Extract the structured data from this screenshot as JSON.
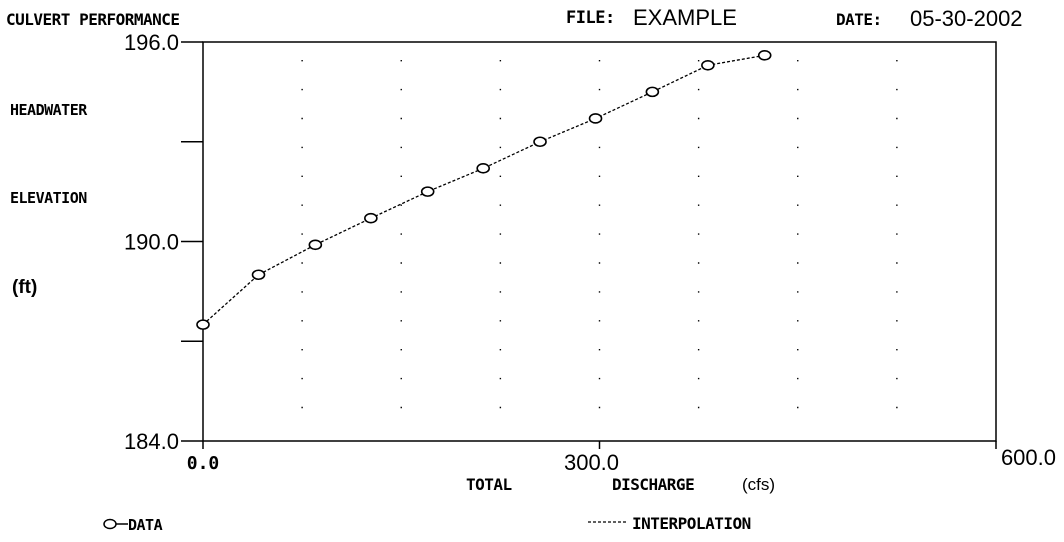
{
  "header": {
    "title": "CULVERT PERFORMANCE",
    "file_label": "FILE:",
    "file_value": "EXAMPLE",
    "date_label": "DATE:",
    "date_value": "05-30-2002"
  },
  "axes": {
    "y_label_line1": "HEADWATER",
    "y_label_line2": "ELEVATION",
    "y_unit": "(ft)",
    "x_label_word1": "TOTAL",
    "x_label_word2": "DISCHARGE",
    "x_unit": "(cfs)",
    "y_ticks": [
      {
        "value": 196.0,
        "label": "196.0"
      },
      {
        "value": 193.0,
        "label": ""
      },
      {
        "value": 190.0,
        "label": "190.0"
      },
      {
        "value": 187.0,
        "label": ""
      },
      {
        "value": 184.0,
        "label": "184.0"
      }
    ],
    "x_ticks": [
      {
        "value": 0,
        "label": "0.0"
      },
      {
        "value": 300,
        "label": "300.0"
      },
      {
        "value": 600,
        "label": "600.0"
      }
    ]
  },
  "legend": {
    "data_label": "DATA",
    "interp_label": "INTERPOLATION"
  },
  "chart_data": {
    "type": "line",
    "title": "CULVERT PERFORMANCE",
    "xlabel": "TOTAL DISCHARGE (cfs)",
    "ylabel": "HEADWATER ELEVATION (ft)",
    "xlim": [
      0,
      600
    ],
    "ylim": [
      184,
      196
    ],
    "grid": true,
    "legend_position": "bottom",
    "series": [
      {
        "name": "DATA",
        "style": "circle-markers",
        "x": [
          0,
          42,
          85,
          127,
          170,
          212,
          255,
          297,
          340,
          382,
          425
        ],
        "y": [
          187.5,
          189.0,
          189.9,
          190.7,
          191.5,
          192.2,
          193.0,
          193.7,
          194.5,
          195.3,
          195.6
        ]
      },
      {
        "name": "INTERPOLATION",
        "style": "dashed-line",
        "x": [
          0,
          42,
          85,
          127,
          170,
          212,
          255,
          297,
          340,
          382,
          425
        ],
        "y": [
          187.5,
          189.0,
          189.9,
          190.7,
          191.5,
          192.2,
          193.0,
          193.7,
          194.5,
          195.3,
          195.6
        ]
      }
    ]
  }
}
